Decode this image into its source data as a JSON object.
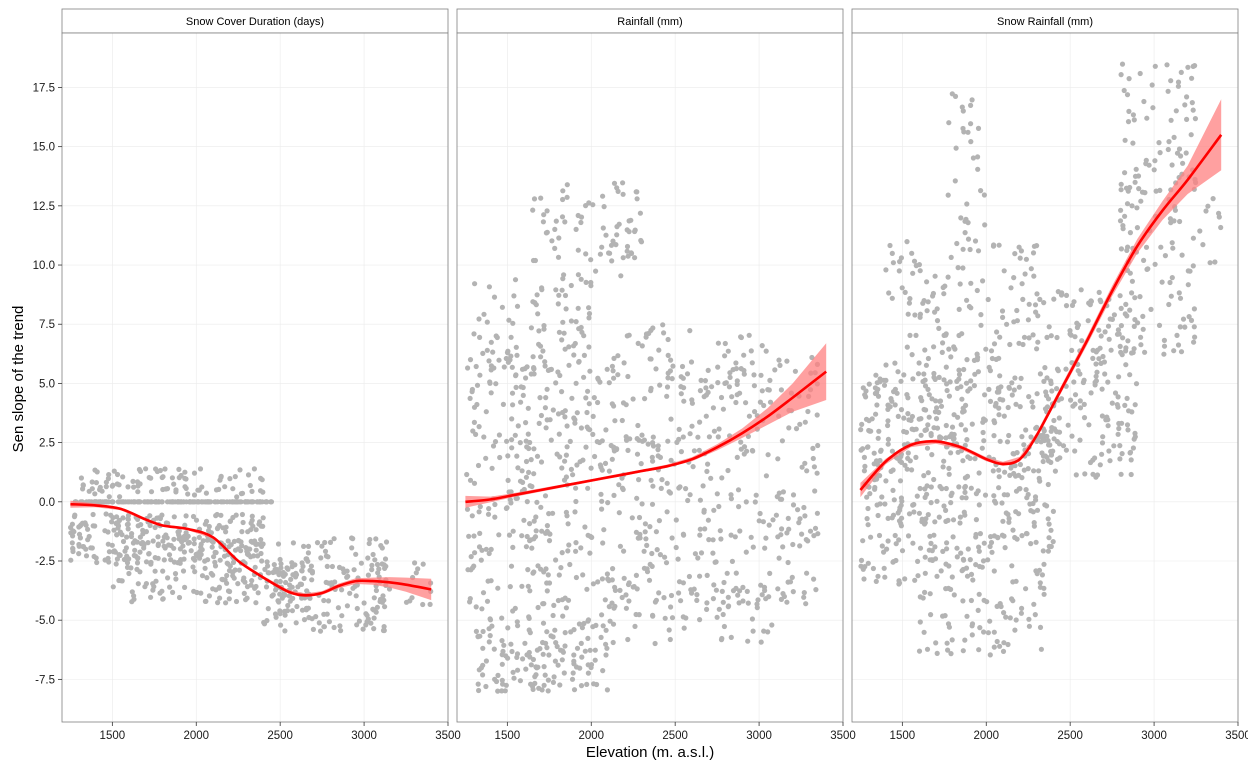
{
  "chart_data": {
    "type": "scatter",
    "xlabel": "Elevation (m. a.s.l.)",
    "ylabel": "Sen slope of the trend",
    "xlim": [
      1200,
      3500
    ],
    "ylim": [
      -9.3,
      19.8
    ],
    "x_ticks": [
      1500,
      2000,
      2500,
      3000,
      3500
    ],
    "x_tick_labels": [
      "1500",
      "2000",
      "2500",
      "3000",
      "3500"
    ],
    "y_ticks": [
      -7.5,
      -5.0,
      -2.5,
      0.0,
      2.5,
      5.0,
      7.5,
      10.0,
      12.5,
      15.0,
      17.5
    ],
    "y_tick_labels": [
      "-7.5",
      "-5.0",
      "-2.5",
      "0.0",
      "2.5",
      "5.0",
      "7.5",
      "10.0",
      "12.5",
      "15.0",
      "17.5"
    ],
    "grid": true,
    "colors": {
      "points": "#b3b3b3",
      "smooth_line": "#ff0000",
      "confidence_band": "#ff8080",
      "panel_border": "#7f7f7f",
      "strip_background": "#ffffff",
      "grid": "#ebebeb"
    },
    "panels": [
      {
        "title": "Snow Cover Duration (days)",
        "smooth": {
          "x": [
            1250,
            1400,
            1550,
            1700,
            1800,
            1950,
            2100,
            2250,
            2400,
            2550,
            2650,
            2750,
            2850,
            2950,
            3050,
            3150,
            3250,
            3400
          ],
          "y": [
            -0.1,
            -0.15,
            -0.3,
            -0.75,
            -1.0,
            -1.15,
            -1.5,
            -2.5,
            -3.2,
            -3.8,
            -3.95,
            -3.85,
            -3.55,
            -3.35,
            -3.35,
            -3.4,
            -3.5,
            -3.7
          ],
          "band_halfwidth": [
            0.15,
            0.08,
            0.06,
            0.06,
            0.05,
            0.05,
            0.06,
            0.06,
            0.06,
            0.08,
            0.08,
            0.08,
            0.1,
            0.12,
            0.15,
            0.22,
            0.3,
            0.45
          ]
        },
        "points_clusters": [
          {
            "x": [
              1250,
              2450
            ],
            "y": [
              0,
              0
            ],
            "n": 160
          },
          {
            "x": [
              1250,
              2400
            ],
            "y": [
              -2.6,
              -0.5
            ],
            "n": 280
          },
          {
            "x": [
              1300,
              2400
            ],
            "y": [
              0.2,
              1.4
            ],
            "n": 90
          },
          {
            "x": [
              1500,
              2700
            ],
            "y": [
              -4.3,
              -2.5
            ],
            "n": 140
          },
          {
            "x": [
              2400,
              3150
            ],
            "y": [
              -5.5,
              -1.5
            ],
            "n": 170
          },
          {
            "x": [
              3050,
              3400
            ],
            "y": [
              -4.5,
              -2.5
            ],
            "n": 22
          }
        ]
      },
      {
        "title": "Rainfall (mm)",
        "smooth": {
          "x": [
            1250,
            1400,
            1550,
            1700,
            1850,
            2000,
            2150,
            2300,
            2450,
            2600,
            2750,
            2900,
            3050,
            3200,
            3400
          ],
          "y": [
            0.0,
            0.1,
            0.3,
            0.5,
            0.7,
            0.9,
            1.1,
            1.3,
            1.5,
            1.8,
            2.3,
            2.9,
            3.6,
            4.4,
            5.5
          ],
          "band_halfwidth": [
            0.25,
            0.12,
            0.08,
            0.07,
            0.06,
            0.06,
            0.06,
            0.06,
            0.07,
            0.09,
            0.13,
            0.2,
            0.35,
            0.6,
            1.2
          ]
        },
        "points_clusters": [
          {
            "x": [
              1250,
              3350
            ],
            "y": [
              -4.5,
              6.2
            ],
            "n": 650
          },
          {
            "x": [
              1300,
              2100
            ],
            "y": [
              -8.0,
              -4.5
            ],
            "n": 150
          },
          {
            "x": [
              1300,
              2000
            ],
            "y": [
              5.5,
              9.5
            ],
            "n": 90
          },
          {
            "x": [
              1650,
              2300
            ],
            "y": [
              9.5,
              13.5
            ],
            "n": 75
          },
          {
            "x": [
              2100,
              3100
            ],
            "y": [
              -6.0,
              -3.5
            ],
            "n": 60
          },
          {
            "x": [
              2200,
              3100
            ],
            "y": [
              4.5,
              7.5
            ],
            "n": 50
          }
        ]
      },
      {
        "title": "Snow Rainfall (mm)",
        "smooth": {
          "x": [
            1250,
            1400,
            1550,
            1700,
            1850,
            2000,
            2100,
            2200,
            2300,
            2450,
            2600,
            2750,
            2900,
            3050,
            3200,
            3400
          ],
          "y": [
            0.5,
            1.7,
            2.4,
            2.55,
            2.3,
            1.8,
            1.6,
            1.8,
            2.8,
            4.8,
            6.8,
            8.9,
            10.8,
            12.3,
            13.6,
            15.5
          ],
          "band_halfwidth": [
            0.3,
            0.12,
            0.1,
            0.1,
            0.09,
            0.09,
            0.09,
            0.1,
            0.12,
            0.15,
            0.18,
            0.22,
            0.3,
            0.4,
            0.6,
            1.5
          ]
        },
        "points_clusters": [
          {
            "x": [
              1250,
              2400
            ],
            "y": [
              -3.5,
              5.5
            ],
            "n": 520
          },
          {
            "x": [
              1400,
              2300
            ],
            "y": [
              5.0,
              11.0
            ],
            "n": 140
          },
          {
            "x": [
              1750,
              2000
            ],
            "y": [
              11.0,
              17.8
            ],
            "n": 30
          },
          {
            "x": [
              1600,
              2350
            ],
            "y": [
              -6.5,
              -3.5
            ],
            "n": 70
          },
          {
            "x": [
              2300,
              2900
            ],
            "y": [
              1.0,
              9.0
            ],
            "n": 200
          },
          {
            "x": [
              2800,
              3250
            ],
            "y": [
              6.0,
              18.5
            ],
            "n": 160
          },
          {
            "x": [
              3250,
              3400
            ],
            "y": [
              10.0,
              13.0
            ],
            "n": 10
          }
        ]
      }
    ]
  }
}
